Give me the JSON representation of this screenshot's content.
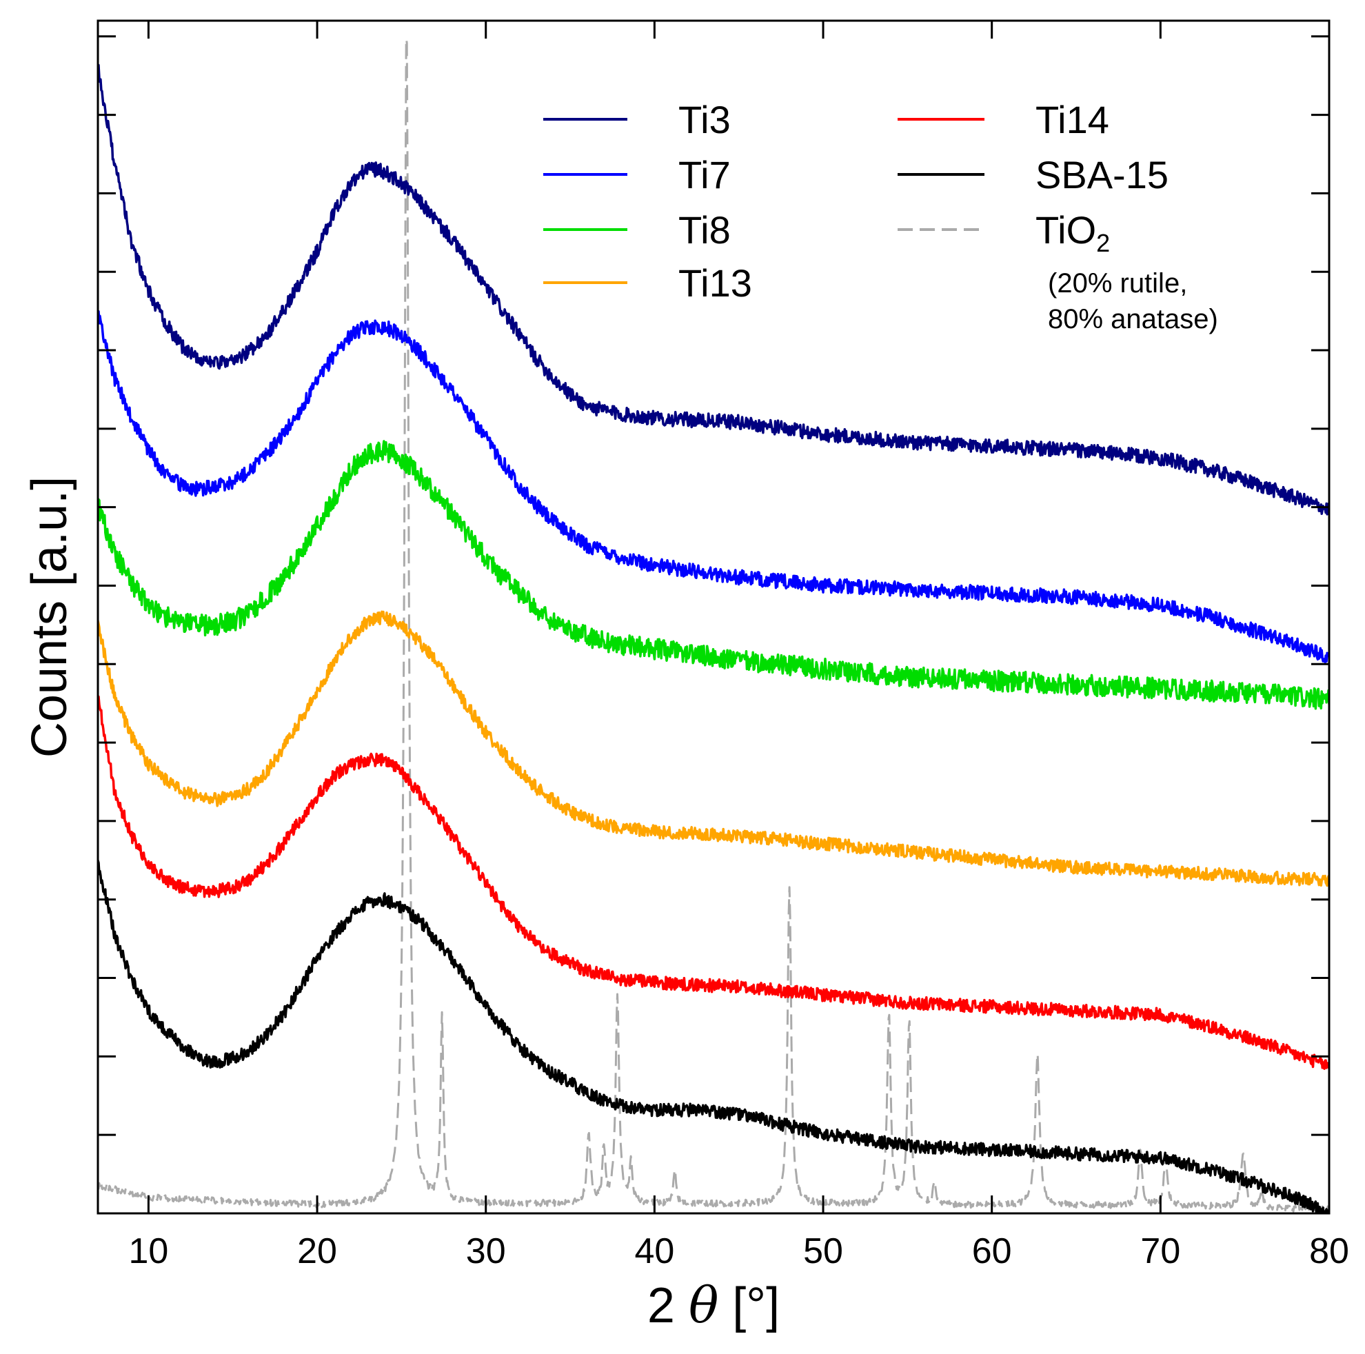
{
  "chart_data": {
    "type": "line",
    "xlabel": "2 θ [°]",
    "xlabel_parts": {
      "prefix": "2 ",
      "symbol": "θ",
      "unit": " [°]"
    },
    "ylabel": "Counts [a.u.]",
    "xlim": [
      7,
      80
    ],
    "ylim": [
      0,
      15
    ],
    "xticks": [
      10,
      20,
      30,
      40,
      50,
      60,
      70,
      80
    ],
    "yticks_count": 15,
    "y_tick_labels_shown": false,
    "grid": false,
    "legend_position": "top-right",
    "series": [
      {
        "name": "Ti3",
        "color": "#000080",
        "style": "solid",
        "noise": 0.09,
        "seed": 3,
        "points": [
          [
            7,
            14.4
          ],
          [
            8,
            13.2
          ],
          [
            9,
            12.2
          ],
          [
            10,
            11.6
          ],
          [
            11,
            11.2
          ],
          [
            12,
            10.9
          ],
          [
            13,
            10.75
          ],
          [
            14,
            10.7
          ],
          [
            15,
            10.7
          ],
          [
            16,
            10.85
          ],
          [
            17,
            11.05
          ],
          [
            18,
            11.35
          ],
          [
            19,
            11.7
          ],
          [
            20,
            12.1
          ],
          [
            21,
            12.6
          ],
          [
            22,
            12.95
          ],
          [
            23,
            13.15
          ],
          [
            24,
            13.1
          ],
          [
            25,
            12.95
          ],
          [
            26,
            12.75
          ],
          [
            27,
            12.5
          ],
          [
            28,
            12.25
          ],
          [
            29,
            11.95
          ],
          [
            30,
            11.65
          ],
          [
            31,
            11.35
          ],
          [
            32,
            11.05
          ],
          [
            33,
            10.75
          ],
          [
            34,
            10.5
          ],
          [
            35,
            10.3
          ],
          [
            36,
            10.15
          ],
          [
            38,
            10.05
          ],
          [
            40,
            10.0
          ],
          [
            45,
            9.95
          ],
          [
            50,
            9.8
          ],
          [
            55,
            9.7
          ],
          [
            60,
            9.65
          ],
          [
            65,
            9.6
          ],
          [
            70,
            9.5
          ],
          [
            73,
            9.35
          ],
          [
            76,
            9.15
          ],
          [
            78,
            9.0
          ],
          [
            80,
            8.85
          ]
        ]
      },
      {
        "name": "Ti7",
        "color": "#0000ff",
        "style": "solid",
        "noise": 0.09,
        "seed": 7,
        "points": [
          [
            7,
            11.3
          ],
          [
            8,
            10.5
          ],
          [
            9,
            10.0
          ],
          [
            10,
            9.6
          ],
          [
            11,
            9.3
          ],
          [
            12,
            9.15
          ],
          [
            13,
            9.1
          ],
          [
            14,
            9.15
          ],
          [
            15,
            9.2
          ],
          [
            16,
            9.35
          ],
          [
            17,
            9.55
          ],
          [
            18,
            9.8
          ],
          [
            19,
            10.1
          ],
          [
            20,
            10.45
          ],
          [
            21,
            10.8
          ],
          [
            22,
            11.05
          ],
          [
            23,
            11.15
          ],
          [
            24,
            11.15
          ],
          [
            25,
            11.05
          ],
          [
            26,
            10.85
          ],
          [
            27,
            10.6
          ],
          [
            28,
            10.35
          ],
          [
            29,
            10.05
          ],
          [
            30,
            9.75
          ],
          [
            31,
            9.45
          ],
          [
            32,
            9.15
          ],
          [
            33,
            8.9
          ],
          [
            34,
            8.7
          ],
          [
            35,
            8.55
          ],
          [
            36,
            8.4
          ],
          [
            38,
            8.25
          ],
          [
            40,
            8.15
          ],
          [
            45,
            8.0
          ],
          [
            50,
            7.9
          ],
          [
            55,
            7.85
          ],
          [
            60,
            7.8
          ],
          [
            65,
            7.75
          ],
          [
            70,
            7.65
          ],
          [
            73,
            7.5
          ],
          [
            76,
            7.3
          ],
          [
            78,
            7.15
          ],
          [
            80,
            7.0
          ]
        ]
      },
      {
        "name": "Ti8",
        "color": "#00dd00",
        "style": "solid",
        "noise": 0.13,
        "seed": 8,
        "points": [
          [
            7,
            8.9
          ],
          [
            8,
            8.3
          ],
          [
            9,
            7.9
          ],
          [
            10,
            7.65
          ],
          [
            11,
            7.5
          ],
          [
            12,
            7.45
          ],
          [
            13,
            7.4
          ],
          [
            14,
            7.4
          ],
          [
            15,
            7.45
          ],
          [
            16,
            7.55
          ],
          [
            17,
            7.75
          ],
          [
            18,
            8.0
          ],
          [
            19,
            8.3
          ],
          [
            20,
            8.65
          ],
          [
            21,
            9.0
          ],
          [
            22,
            9.35
          ],
          [
            23,
            9.55
          ],
          [
            24,
            9.6
          ],
          [
            25,
            9.5
          ],
          [
            26,
            9.3
          ],
          [
            27,
            9.05
          ],
          [
            28,
            8.8
          ],
          [
            29,
            8.5
          ],
          [
            30,
            8.25
          ],
          [
            31,
            8.0
          ],
          [
            32,
            7.8
          ],
          [
            33,
            7.6
          ],
          [
            34,
            7.45
          ],
          [
            35,
            7.35
          ],
          [
            36,
            7.25
          ],
          [
            38,
            7.15
          ],
          [
            40,
            7.1
          ],
          [
            45,
            6.95
          ],
          [
            50,
            6.85
          ],
          [
            55,
            6.75
          ],
          [
            60,
            6.7
          ],
          [
            65,
            6.65
          ],
          [
            70,
            6.6
          ],
          [
            75,
            6.55
          ],
          [
            78,
            6.5
          ],
          [
            80,
            6.45
          ]
        ]
      },
      {
        "name": "Ti13",
        "color": "#ffa500",
        "style": "solid",
        "noise": 0.08,
        "seed": 13,
        "points": [
          [
            7,
            7.4
          ],
          [
            8,
            6.5
          ],
          [
            9,
            6.0
          ],
          [
            10,
            5.65
          ],
          [
            11,
            5.45
          ],
          [
            12,
            5.3
          ],
          [
            13,
            5.25
          ],
          [
            14,
            5.2
          ],
          [
            15,
            5.25
          ],
          [
            16,
            5.35
          ],
          [
            17,
            5.55
          ],
          [
            18,
            5.85
          ],
          [
            19,
            6.2
          ],
          [
            20,
            6.55
          ],
          [
            21,
            6.95
          ],
          [
            22,
            7.25
          ],
          [
            23,
            7.45
          ],
          [
            24,
            7.5
          ],
          [
            25,
            7.4
          ],
          [
            26,
            7.2
          ],
          [
            27,
            6.95
          ],
          [
            28,
            6.65
          ],
          [
            29,
            6.35
          ],
          [
            30,
            6.05
          ],
          [
            31,
            5.8
          ],
          [
            32,
            5.55
          ],
          [
            33,
            5.35
          ],
          [
            34,
            5.2
          ],
          [
            35,
            5.05
          ],
          [
            36,
            4.95
          ],
          [
            38,
            4.85
          ],
          [
            40,
            4.8
          ],
          [
            45,
            4.75
          ],
          [
            50,
            4.65
          ],
          [
            55,
            4.55
          ],
          [
            60,
            4.45
          ],
          [
            65,
            4.35
          ],
          [
            70,
            4.3
          ],
          [
            75,
            4.25
          ],
          [
            78,
            4.2
          ],
          [
            80,
            4.2
          ]
        ]
      },
      {
        "name": "Ti14",
        "color": "#ff0000",
        "style": "solid",
        "noise": 0.08,
        "seed": 14,
        "points": [
          [
            7,
            6.5
          ],
          [
            8,
            5.3
          ],
          [
            9,
            4.75
          ],
          [
            10,
            4.4
          ],
          [
            11,
            4.2
          ],
          [
            12,
            4.1
          ],
          [
            13,
            4.05
          ],
          [
            14,
            4.05
          ],
          [
            15,
            4.1
          ],
          [
            16,
            4.2
          ],
          [
            17,
            4.4
          ],
          [
            18,
            4.65
          ],
          [
            19,
            4.95
          ],
          [
            20,
            5.25
          ],
          [
            21,
            5.5
          ],
          [
            22,
            5.65
          ],
          [
            23,
            5.7
          ],
          [
            24,
            5.7
          ],
          [
            25,
            5.55
          ],
          [
            26,
            5.3
          ],
          [
            27,
            5.05
          ],
          [
            28,
            4.75
          ],
          [
            29,
            4.45
          ],
          [
            30,
            4.15
          ],
          [
            31,
            3.85
          ],
          [
            32,
            3.6
          ],
          [
            33,
            3.4
          ],
          [
            34,
            3.25
          ],
          [
            35,
            3.15
          ],
          [
            36,
            3.05
          ],
          [
            38,
            2.95
          ],
          [
            40,
            2.9
          ],
          [
            45,
            2.85
          ],
          [
            50,
            2.75
          ],
          [
            55,
            2.65
          ],
          [
            60,
            2.6
          ],
          [
            65,
            2.55
          ],
          [
            70,
            2.5
          ],
          [
            73,
            2.35
          ],
          [
            76,
            2.15
          ],
          [
            78,
            2.0
          ],
          [
            80,
            1.85
          ]
        ]
      },
      {
        "name": "SBA-15",
        "color": "#000000",
        "style": "solid",
        "noise": 0.08,
        "seed": 15,
        "points": [
          [
            7,
            4.4
          ],
          [
            8,
            3.5
          ],
          [
            9,
            2.95
          ],
          [
            10,
            2.55
          ],
          [
            11,
            2.3
          ],
          [
            12,
            2.1
          ],
          [
            13,
            1.95
          ],
          [
            14,
            1.9
          ],
          [
            15,
            1.95
          ],
          [
            16,
            2.05
          ],
          [
            17,
            2.25
          ],
          [
            18,
            2.5
          ],
          [
            19,
            2.85
          ],
          [
            20,
            3.2
          ],
          [
            21,
            3.5
          ],
          [
            22,
            3.75
          ],
          [
            23,
            3.9
          ],
          [
            24,
            3.95
          ],
          [
            25,
            3.85
          ],
          [
            26,
            3.7
          ],
          [
            27,
            3.45
          ],
          [
            28,
            3.2
          ],
          [
            29,
            2.9
          ],
          [
            30,
            2.6
          ],
          [
            31,
            2.35
          ],
          [
            32,
            2.1
          ],
          [
            33,
            1.9
          ],
          [
            34,
            1.75
          ],
          [
            35,
            1.65
          ],
          [
            36,
            1.5
          ],
          [
            38,
            1.35
          ],
          [
            40,
            1.3
          ],
          [
            42,
            1.3
          ],
          [
            45,
            1.25
          ],
          [
            50,
            1.0
          ],
          [
            55,
            0.85
          ],
          [
            60,
            0.8
          ],
          [
            65,
            0.75
          ],
          [
            70,
            0.7
          ],
          [
            73,
            0.55
          ],
          [
            76,
            0.35
          ],
          [
            78,
            0.2
          ],
          [
            80,
            0.0
          ]
        ]
      },
      {
        "name": "TiO2",
        "color": "#aaaaaa",
        "style": "dashed",
        "noise": 0.04,
        "seed": 2,
        "baseline": [
          [
            7,
            0.35
          ],
          [
            10,
            0.2
          ],
          [
            20,
            0.1
          ],
          [
            30,
            0.12
          ],
          [
            40,
            0.12
          ],
          [
            50,
            0.12
          ],
          [
            60,
            0.1
          ],
          [
            70,
            0.1
          ],
          [
            75,
            0.08
          ],
          [
            80,
            0.05
          ]
        ],
        "peaks": [
          [
            25.3,
            14.9,
            0.3
          ],
          [
            27.4,
            2.3,
            0.2
          ],
          [
            36.1,
            0.9,
            0.25
          ],
          [
            37.0,
            0.7,
            0.2
          ],
          [
            37.8,
            2.6,
            0.25
          ],
          [
            38.6,
            0.5,
            0.2
          ],
          [
            41.2,
            0.4,
            0.2
          ],
          [
            48.0,
            4.0,
            0.25
          ],
          [
            53.9,
            2.4,
            0.25
          ],
          [
            55.1,
            2.3,
            0.25
          ],
          [
            56.6,
            0.3,
            0.2
          ],
          [
            62.7,
            1.9,
            0.3
          ],
          [
            68.8,
            0.7,
            0.25
          ],
          [
            70.3,
            0.6,
            0.25
          ],
          [
            74.9,
            0.7,
            0.3
          ],
          [
            76.0,
            0.2,
            0.2
          ]
        ]
      }
    ],
    "legend": [
      {
        "label": "Ti3",
        "color": "#000080",
        "style": "solid"
      },
      {
        "label": "Ti7",
        "color": "#0000ff",
        "style": "solid"
      },
      {
        "label": "Ti8",
        "color": "#00dd00",
        "style": "solid"
      },
      {
        "label": "Ti13",
        "color": "#ffa500",
        "style": "solid"
      },
      {
        "label": "Ti14",
        "color": "#ff0000",
        "style": "solid"
      },
      {
        "label": "SBA-15",
        "color": "#000000",
        "style": "solid"
      },
      {
        "label": "TiO",
        "subscript": "2",
        "color": "#aaaaaa",
        "style": "dashed",
        "note_line1": "(20% rutile,",
        "note_line2": "80% anatase)"
      }
    ]
  }
}
